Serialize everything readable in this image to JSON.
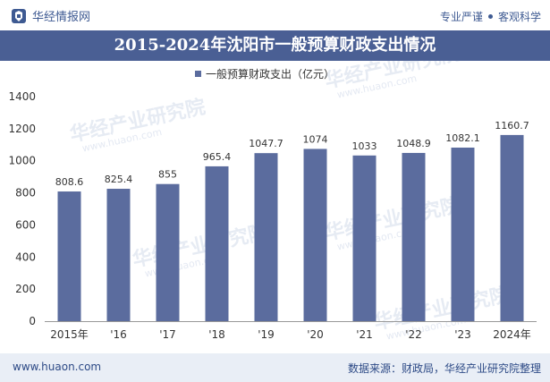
{
  "header": {
    "brand_name": "华经情报网",
    "slogan_left": "专业严谨",
    "slogan_right": "客观科学"
  },
  "footer": {
    "url": "www.huaon.com",
    "source": "数据来源：财政局，华经产业研究院整理"
  },
  "watermark": {
    "text": "华经产业研究院",
    "url": "www.huaon.com"
  },
  "colors": {
    "title_band": "#4a5f94",
    "bar": "#5b6c9e",
    "footer_bg": "#e9eef6"
  },
  "chart_data": {
    "type": "bar",
    "title": "2015-2024年沈阳市一般预算财政支出情况",
    "legend_position": "top-center",
    "grid": false,
    "categories": [
      "2015年",
      "'16",
      "'17",
      "'18",
      "'19",
      "'20",
      "'21",
      "'22",
      "'23",
      "2024年"
    ],
    "series": [
      {
        "name": "一般预算财政支出（亿元）",
        "values": [
          808.6,
          825.4,
          855,
          965.4,
          1047.7,
          1074,
          1033,
          1048.9,
          1082.1,
          1160.7
        ],
        "labels": [
          "808.6",
          "825.4",
          "855",
          "965.4",
          "1047.7",
          "1074",
          "1033",
          "1048.9",
          "1082.1",
          "1160.7"
        ]
      }
    ],
    "ylim": [
      0,
      1400
    ],
    "yticks": [
      "0",
      "200",
      "400",
      "600",
      "800",
      "1000",
      "1200",
      "1400"
    ],
    "xlabel": "",
    "ylabel": ""
  }
}
